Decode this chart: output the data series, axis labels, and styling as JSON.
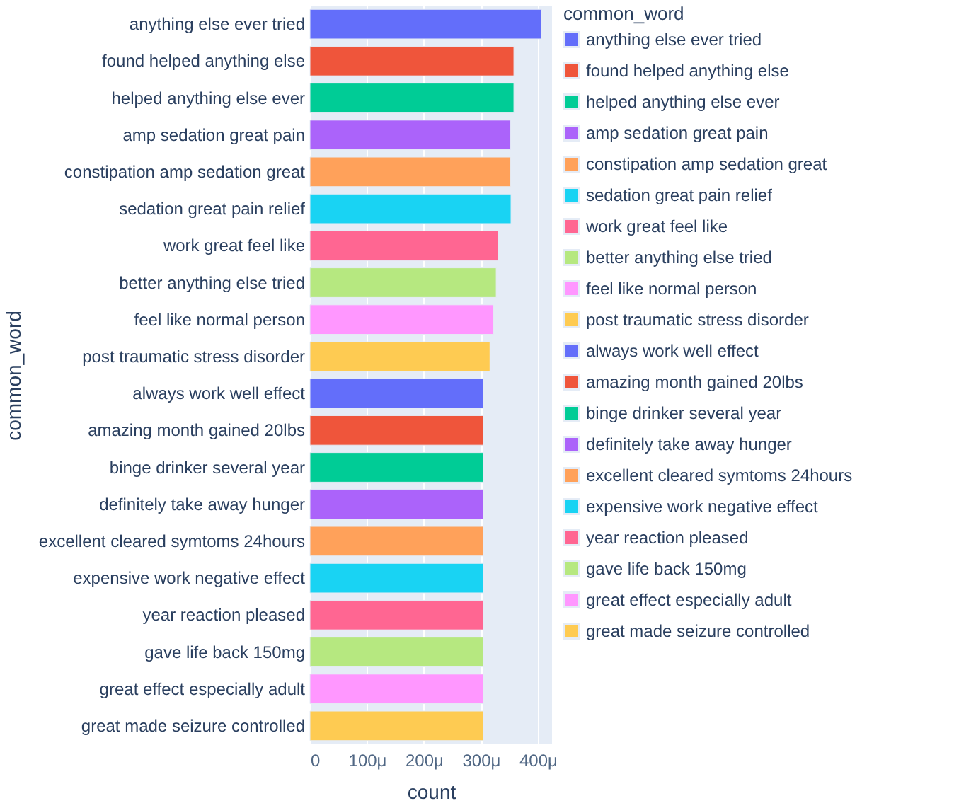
{
  "chart_data": {
    "type": "bar",
    "orientation": "horizontal",
    "xlabel": "count",
    "ylabel": "common_word",
    "legend_title": "common_word",
    "legend": "top right",
    "grid": "x",
    "categories": [
      "anything else ever tried",
      "found helped anything else",
      "helped anything else ever",
      "amp sedation great pain",
      "constipation amp sedation great",
      "sedation great pain relief",
      "work great feel like",
      "better anything else tried",
      "feel like normal person",
      "post traumatic stress disorder",
      "always work well effect",
      "amazing month gained 20lbs",
      "binge drinker several year",
      "definitely take away hunger",
      "excellent cleared symtoms 24hours",
      "expensive work negative effect",
      "year reaction pleased",
      "gave life back 150mg",
      "great effect especially adult",
      "great made seizure controlled"
    ],
    "series": [
      {
        "name": "anything else ever tried",
        "color": "#636efa",
        "values": [
          407,
          null,
          null,
          null,
          null,
          null,
          null,
          null,
          null,
          null,
          null,
          null,
          null,
          null,
          null,
          null,
          null,
          null,
          null,
          null
        ]
      },
      {
        "name": "found helped anything else",
        "color": "#ef553b",
        "values": [
          null,
          358,
          null,
          null,
          null,
          null,
          null,
          null,
          null,
          null,
          null,
          null,
          null,
          null,
          null,
          null,
          null,
          null,
          null,
          null
        ]
      },
      {
        "name": "helped anything else ever",
        "color": "#00cc96",
        "values": [
          null,
          null,
          358,
          null,
          null,
          null,
          null,
          null,
          null,
          null,
          null,
          null,
          null,
          null,
          null,
          null,
          null,
          null,
          null,
          null
        ]
      },
      {
        "name": "amp sedation great pain",
        "color": "#ab63fa",
        "values": [
          null,
          null,
          null,
          352,
          null,
          null,
          null,
          null,
          null,
          null,
          null,
          null,
          null,
          null,
          null,
          null,
          null,
          null,
          null,
          null
        ]
      },
      {
        "name": "constipation amp sedation great",
        "color": "#ffa15a",
        "values": [
          null,
          null,
          null,
          null,
          352,
          null,
          null,
          null,
          null,
          null,
          null,
          null,
          null,
          null,
          null,
          null,
          null,
          null,
          null,
          null
        ]
      },
      {
        "name": "sedation great pain relief",
        "color": "#19d3f3",
        "values": [
          null,
          null,
          null,
          null,
          null,
          353,
          null,
          null,
          null,
          null,
          null,
          null,
          null,
          null,
          null,
          null,
          null,
          null,
          null,
          null
        ]
      },
      {
        "name": "work great feel like",
        "color": "#ff6692",
        "values": [
          null,
          null,
          null,
          null,
          null,
          null,
          330,
          null,
          null,
          null,
          null,
          null,
          null,
          null,
          null,
          null,
          null,
          null,
          null,
          null
        ]
      },
      {
        "name": "better anything else tried",
        "color": "#b6e880",
        "values": [
          null,
          null,
          null,
          null,
          null,
          null,
          null,
          327,
          null,
          null,
          null,
          null,
          null,
          null,
          null,
          null,
          null,
          null,
          null,
          null
        ]
      },
      {
        "name": "feel like normal person",
        "color": "#ff97ff",
        "values": [
          null,
          null,
          null,
          null,
          null,
          null,
          null,
          null,
          322,
          null,
          null,
          null,
          null,
          null,
          null,
          null,
          null,
          null,
          null,
          null
        ]
      },
      {
        "name": "post traumatic stress disorder",
        "color": "#fecb52",
        "values": [
          null,
          null,
          null,
          null,
          null,
          null,
          null,
          null,
          null,
          316,
          null,
          null,
          null,
          null,
          null,
          null,
          null,
          null,
          null,
          null
        ]
      },
      {
        "name": "always work well effect",
        "color": "#636efa",
        "values": [
          null,
          null,
          null,
          null,
          null,
          null,
          null,
          null,
          null,
          null,
          304,
          null,
          null,
          null,
          null,
          null,
          null,
          null,
          null,
          null
        ]
      },
      {
        "name": "amazing month gained 20lbs",
        "color": "#ef553b",
        "values": [
          null,
          null,
          null,
          null,
          null,
          null,
          null,
          null,
          null,
          null,
          null,
          304,
          null,
          null,
          null,
          null,
          null,
          null,
          null,
          null
        ]
      },
      {
        "name": "binge drinker several year",
        "color": "#00cc96",
        "values": [
          null,
          null,
          null,
          null,
          null,
          null,
          null,
          null,
          null,
          null,
          null,
          null,
          304,
          null,
          null,
          null,
          null,
          null,
          null,
          null
        ]
      },
      {
        "name": "definitely take away hunger",
        "color": "#ab63fa",
        "values": [
          null,
          null,
          null,
          null,
          null,
          null,
          null,
          null,
          null,
          null,
          null,
          null,
          null,
          304,
          null,
          null,
          null,
          null,
          null,
          null
        ]
      },
      {
        "name": "excellent cleared symtoms 24hours",
        "color": "#ffa15a",
        "values": [
          null,
          null,
          null,
          null,
          null,
          null,
          null,
          null,
          null,
          null,
          null,
          null,
          null,
          null,
          304,
          null,
          null,
          null,
          null,
          null
        ]
      },
      {
        "name": "expensive work negative effect",
        "color": "#19d3f3",
        "values": [
          null,
          null,
          null,
          null,
          null,
          null,
          null,
          null,
          null,
          null,
          null,
          null,
          null,
          null,
          null,
          304,
          null,
          null,
          null,
          null
        ]
      },
      {
        "name": "year reaction pleased",
        "color": "#ff6692",
        "values": [
          null,
          null,
          null,
          null,
          null,
          null,
          null,
          null,
          null,
          null,
          null,
          null,
          null,
          null,
          null,
          null,
          304,
          null,
          null,
          null
        ]
      },
      {
        "name": "gave life back 150mg",
        "color": "#b6e880",
        "values": [
          null,
          null,
          null,
          null,
          null,
          null,
          null,
          null,
          null,
          null,
          null,
          null,
          null,
          null,
          null,
          null,
          null,
          304,
          null,
          null
        ]
      },
      {
        "name": "great effect especially adult",
        "color": "#ff97ff",
        "values": [
          null,
          null,
          null,
          null,
          null,
          null,
          null,
          null,
          null,
          null,
          null,
          null,
          null,
          null,
          null,
          null,
          null,
          null,
          304,
          null
        ]
      },
      {
        "name": "great made seizure controlled",
        "color": "#fecb52",
        "values": [
          null,
          null,
          null,
          null,
          null,
          null,
          null,
          null,
          null,
          null,
          null,
          null,
          null,
          null,
          null,
          null,
          null,
          null,
          null,
          304
        ]
      }
    ],
    "xlim": [
      0,
      425
    ],
    "xticks": [
      0,
      {
        "value": 100,
        "label": "100μ"
      },
      {
        "value": 200,
        "label": "200μ"
      },
      {
        "value": 300,
        "label": "300μ"
      },
      {
        "value": 400,
        "label": "400μ"
      }
    ]
  }
}
